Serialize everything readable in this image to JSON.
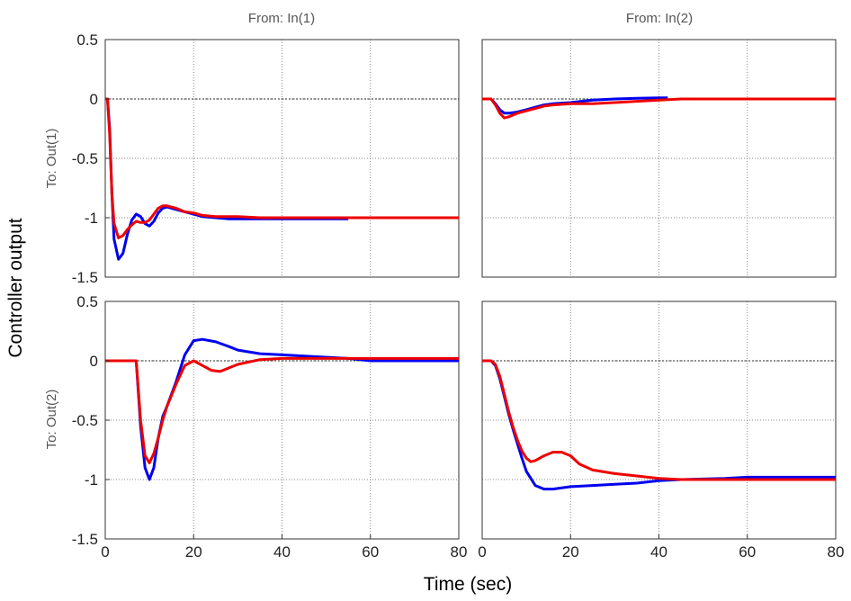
{
  "chart_data": {
    "type": "line",
    "title": "",
    "xlabel": "Time (sec)",
    "ylabel": "Controller output",
    "col_labels": [
      "From: In(1)",
      "From: In(2)"
    ],
    "row_labels": [
      "To: Out(1)",
      "To: Out(2)"
    ],
    "xlim": [
      0,
      80
    ],
    "ylim": [
      -1.5,
      0.5
    ],
    "xticks": [
      "0",
      "20",
      "40",
      "60",
      "80"
    ],
    "yticks": [
      "0.5",
      "0",
      "-0.5",
      "-1",
      "-1.5"
    ],
    "grid": true,
    "colors": {
      "blue": "#0000ee",
      "red": "#ee0000",
      "zero_line": "#555555"
    },
    "panels": [
      {
        "row": 0,
        "col": 0,
        "series": [
          {
            "color": "blue",
            "x": [
              0,
              0.5,
              1,
              1.5,
              2,
              3,
              4,
              5,
              6,
              7,
              8,
              9,
              10,
              11,
              12,
              13,
              14,
              16,
              18,
              20,
              22,
              25,
              28,
              30,
              35,
              40,
              55
            ],
            "y": [
              0,
              0,
              -0.25,
              -0.8,
              -1.18,
              -1.35,
              -1.3,
              -1.14,
              -1.02,
              -0.97,
              -0.99,
              -1.05,
              -1.07,
              -1.03,
              -0.96,
              -0.92,
              -0.91,
              -0.93,
              -0.95,
              -0.97,
              -0.99,
              -1.0,
              -1.01,
              -1.01,
              -1.01,
              -1.01,
              -1.01
            ]
          },
          {
            "color": "red",
            "x": [
              0,
              0.5,
              1,
              1.5,
              2,
              3,
              4,
              5,
              6,
              7,
              8,
              9,
              10,
              11,
              12,
              13,
              14,
              16,
              18,
              20,
              22,
              25,
              28,
              30,
              35,
              40,
              80
            ],
            "y": [
              0,
              0,
              -0.3,
              -0.8,
              -1.05,
              -1.17,
              -1.15,
              -1.1,
              -1.06,
              -1.03,
              -1.04,
              -1.04,
              -1.02,
              -0.97,
              -0.92,
              -0.9,
              -0.9,
              -0.92,
              -0.95,
              -0.96,
              -0.98,
              -0.99,
              -0.99,
              -0.99,
              -1.0,
              -1.0,
              -1.0
            ]
          }
        ]
      },
      {
        "row": 0,
        "col": 1,
        "series": [
          {
            "color": "blue",
            "x": [
              0,
              1,
              2,
              3,
              4,
              5,
              6,
              8,
              10,
              12,
              14,
              16,
              20,
              25,
              30,
              35,
              40,
              42
            ],
            "y": [
              0,
              0,
              0,
              -0.04,
              -0.09,
              -0.12,
              -0.12,
              -0.11,
              -0.09,
              -0.07,
              -0.05,
              -0.04,
              -0.03,
              -0.01,
              0.0,
              0.005,
              0.01,
              0.01
            ]
          },
          {
            "color": "red",
            "x": [
              0,
              1,
              2,
              3,
              4,
              5,
              6,
              8,
              10,
              12,
              14,
              16,
              20,
              25,
              30,
              35,
              40,
              45,
              80
            ],
            "y": [
              0,
              0,
              0,
              -0.05,
              -0.12,
              -0.16,
              -0.15,
              -0.12,
              -0.1,
              -0.08,
              -0.06,
              -0.05,
              -0.04,
              -0.04,
              -0.03,
              -0.02,
              -0.01,
              0,
              0
            ]
          }
        ]
      },
      {
        "row": 1,
        "col": 0,
        "series": [
          {
            "color": "blue",
            "x": [
              0,
              7,
              8,
              9,
              10,
              11,
              12,
              13,
              14,
              16,
              18,
              20,
              22,
              25,
              28,
              30,
              35,
              40,
              45,
              55,
              60,
              80
            ],
            "y": [
              0,
              0,
              -0.55,
              -0.9,
              -1.0,
              -0.9,
              -0.65,
              -0.47,
              -0.38,
              -0.18,
              0.05,
              0.17,
              0.18,
              0.16,
              0.12,
              0.09,
              0.06,
              0.05,
              0.04,
              0.02,
              0.0,
              0.0
            ]
          },
          {
            "color": "red",
            "x": [
              0,
              7,
              8,
              9,
              10,
              11,
              12,
              13,
              14,
              16,
              18,
              20,
              22,
              24,
              26,
              28,
              30,
              35,
              40,
              80
            ],
            "y": [
              0,
              0,
              -0.5,
              -0.8,
              -0.86,
              -0.78,
              -0.65,
              -0.5,
              -0.38,
              -0.2,
              -0.04,
              0.0,
              -0.04,
              -0.08,
              -0.09,
              -0.06,
              -0.03,
              0.01,
              0.02,
              0.02
            ]
          }
        ]
      },
      {
        "row": 1,
        "col": 1,
        "series": [
          {
            "color": "blue",
            "x": [
              0,
              1,
              2,
              3,
              4,
              5,
              6,
              7,
              8,
              9,
              10,
              12,
              14,
              16,
              20,
              25,
              30,
              35,
              40,
              45,
              55,
              60,
              80
            ],
            "y": [
              0,
              0,
              0,
              -0.04,
              -0.15,
              -0.3,
              -0.45,
              -0.58,
              -0.7,
              -0.82,
              -0.93,
              -1.05,
              -1.08,
              -1.08,
              -1.06,
              -1.05,
              -1.04,
              -1.03,
              -1.01,
              -1.0,
              -0.99,
              -0.98,
              -0.98
            ]
          },
          {
            "color": "red",
            "x": [
              0,
              1,
              2,
              3,
              4,
              5,
              6,
              7,
              8,
              9,
              10,
              11,
              12,
              14,
              16,
              18,
              20,
              22,
              25,
              30,
              35,
              40,
              45,
              80
            ],
            "y": [
              0,
              0,
              0,
              -0.03,
              -0.13,
              -0.28,
              -0.43,
              -0.56,
              -0.67,
              -0.76,
              -0.82,
              -0.85,
              -0.84,
              -0.8,
              -0.77,
              -0.77,
              -0.8,
              -0.87,
              -0.92,
              -0.95,
              -0.97,
              -0.99,
              -1.0,
              -1.0
            ]
          }
        ]
      }
    ]
  }
}
